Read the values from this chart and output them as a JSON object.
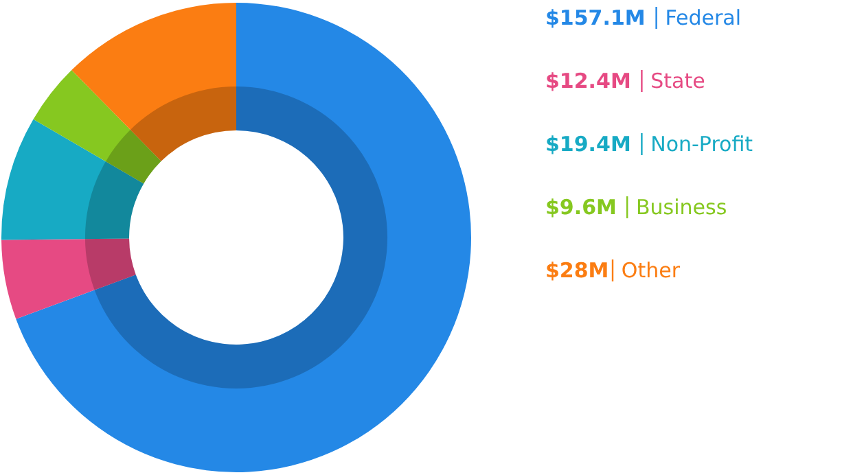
{
  "chart_data": {
    "type": "donut",
    "categories": [
      "Federal",
      "State",
      "Non-Profit",
      "Business",
      "Other"
    ],
    "values": [
      157.1,
      12.4,
      19.4,
      9.6,
      28
    ],
    "value_labels": [
      "$157.1M",
      "$12.4M",
      "$19.4M",
      "$9.6M",
      "$28M"
    ],
    "colors": [
      "#2488e6",
      "#e64a83",
      "#17aac4",
      "#86c820",
      "#fb7d12"
    ],
    "legend": "top right"
  }
}
